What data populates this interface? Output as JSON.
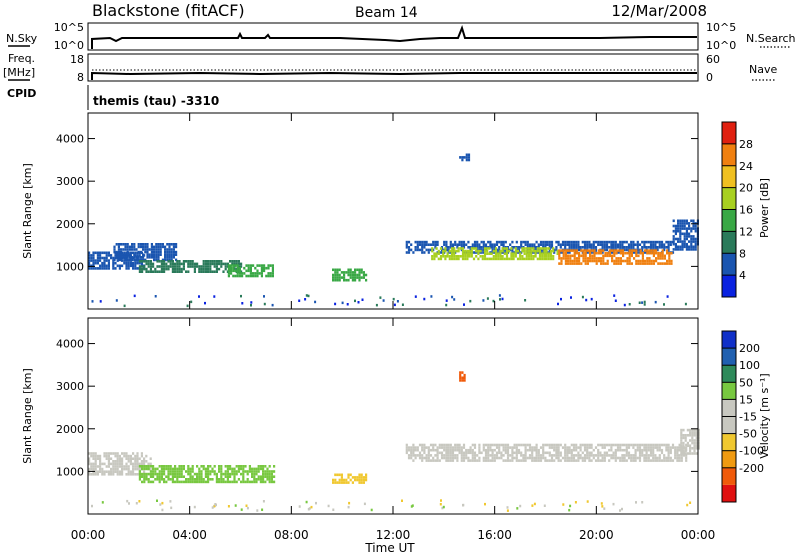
{
  "header": {
    "station": "Blackstone (fitACF)",
    "beam": "Beam 14",
    "date": "12/Mar/2008"
  },
  "panels": {
    "nsky_label": "N.Sky",
    "nsky_ticks": [
      "10^5",
      "10^0"
    ],
    "nsearch_label": "N.Search",
    "freq_label_1": "Freq.",
    "freq_label_2": "[MHz]",
    "freq_ticks": [
      "18",
      "8"
    ],
    "nave_ticks": [
      "60",
      "0"
    ],
    "nave_label": "Nave",
    "cpid_label": "CPID",
    "cpid_value": "themis (tau) -3310"
  },
  "axes": {
    "ylabel": "Slant Range [km]",
    "xlabel": "Time UT",
    "x_ticks": [
      "00:00",
      "04:00",
      "08:00",
      "12:00",
      "16:00",
      "20:00",
      "00:00"
    ],
    "y_ticks": [
      "1000",
      "2000",
      "3000",
      "4000"
    ]
  },
  "colors": {
    "power_scale": [
      "#0a22e0",
      "#1a55b0",
      "#2a7a5a",
      "#39a845",
      "#a8d020",
      "#f0c020",
      "#f08010",
      "#e02010"
    ],
    "velocity_scale": [
      "#e01010",
      "#f05a0a",
      "#f09a10",
      "#f0c830",
      "#c8c8c0",
      "#c8c8c0",
      "#78c840",
      "#2e8a5a",
      "#2060b0",
      "#1030c8"
    ]
  },
  "chart_data": [
    {
      "type": "heatmap",
      "name": "power",
      "colorbar_label": "Power [dB]",
      "colorbar_ticks": [
        "4",
        "8",
        "12",
        "16",
        "20",
        "24",
        "28"
      ],
      "x_unit": "hours UT",
      "xlim": [
        0,
        24
      ],
      "ylim": [
        0,
        4600
      ],
      "zlim": [
        0,
        32
      ],
      "regions": [
        {
          "t": [
            0.0,
            2.2
          ],
          "r": [
            950,
            1350
          ],
          "value": 6
        },
        {
          "t": [
            1.0,
            3.5
          ],
          "r": [
            1150,
            1550
          ],
          "value": 5
        },
        {
          "t": [
            2.0,
            6.0
          ],
          "r": [
            850,
            1150
          ],
          "value": 10
        },
        {
          "t": [
            5.5,
            7.3
          ],
          "r": [
            800,
            1050
          ],
          "value": 15
        },
        {
          "t": [
            9.6,
            10.9
          ],
          "r": [
            700,
            950
          ],
          "value": 12
        },
        {
          "t": [
            12.5,
            23.0
          ],
          "r": [
            1350,
            1600
          ],
          "value": 7
        },
        {
          "t": [
            13.5,
            18.5
          ],
          "r": [
            1150,
            1450
          ],
          "value": 18
        },
        {
          "t": [
            18.5,
            23.0
          ],
          "r": [
            1050,
            1400
          ],
          "value": 24
        },
        {
          "t": [
            23.0,
            24.0
          ],
          "r": [
            1400,
            2100
          ],
          "value": 6
        },
        {
          "t": [
            14.6,
            15.0
          ],
          "r": [
            3500,
            3650
          ],
          "value": 4
        }
      ]
    },
    {
      "type": "heatmap",
      "name": "velocity",
      "colorbar_label": "Velocity [m s⁻¹]",
      "colorbar_ticks": [
        "200",
        "100",
        "50",
        "15",
        "-15",
        "-50",
        "-100",
        "-200"
      ],
      "x_unit": "hours UT",
      "xlim": [
        0,
        24
      ],
      "ylim": [
        0,
        4600
      ],
      "regions": [
        {
          "t": [
            0.0,
            2.5
          ],
          "r": [
            950,
            1450
          ],
          "value": 0
        },
        {
          "t": [
            2.0,
            7.3
          ],
          "r": [
            750,
            1150
          ],
          "value": 20
        },
        {
          "t": [
            9.6,
            10.9
          ],
          "r": [
            750,
            950
          ],
          "value": -40
        },
        {
          "t": [
            12.5,
            23.5
          ],
          "r": [
            1250,
            1650
          ],
          "value": 0
        },
        {
          "t": [
            23.3,
            24.0
          ],
          "r": [
            1400,
            2000
          ],
          "value": 0
        },
        {
          "t": [
            14.6,
            14.8
          ],
          "r": [
            3150,
            3350
          ],
          "value": -150
        }
      ]
    }
  ]
}
